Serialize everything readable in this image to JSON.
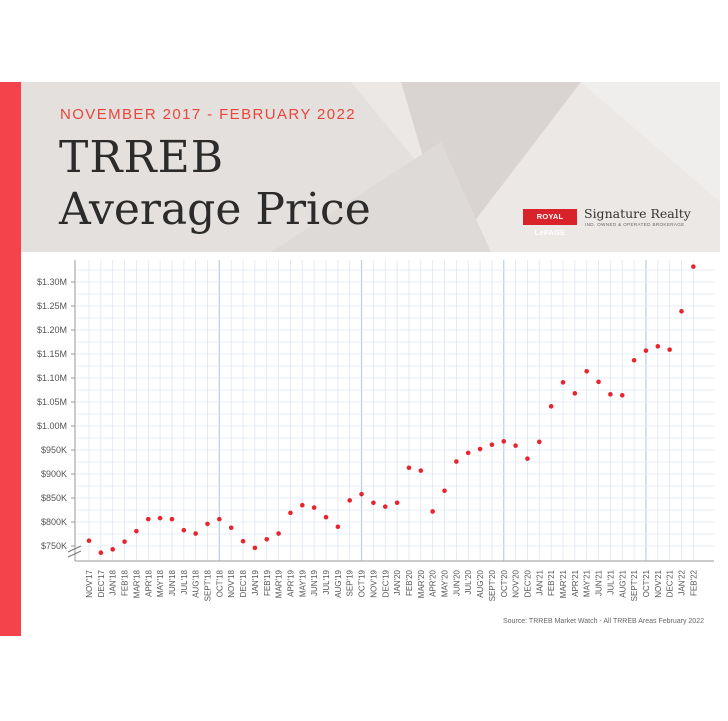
{
  "header": {
    "date_range": "NOVEMBER 2017 - FEBRUARY 2022",
    "title_line1": "TRREB",
    "title_line2": "Average Price",
    "logo_box": "ROYAL LePAGE",
    "logo_name": "Signature Realty",
    "logo_tag": "IND. OWNED & OPERATED BROKERAGE"
  },
  "colors": {
    "accent": "#f5434b",
    "point": "#e8242f",
    "grid": "#dfe6f2",
    "major_grid": "#b9cde6",
    "header_bg": "#e4e0de"
  },
  "source": "Source: TRREB Market Watch - All TRREB Areas February 2022",
  "chart_data": {
    "type": "scatter",
    "title": "TRREB Average Price",
    "subtitle": "NOVEMBER 2017 - FEBRUARY 2022",
    "xlabel": "",
    "ylabel": "",
    "ylim": [
      740000,
      1340000
    ],
    "axis_break": true,
    "grid": true,
    "y_ticks": [
      "$750K",
      "$800K",
      "$850K",
      "$900K",
      "$950K",
      "$1.00M",
      "$1.05M",
      "$1.10M",
      "$1.15M",
      "$1.20M",
      "$1.25M",
      "$1.30M"
    ],
    "y_tick_values": [
      750000,
      800000,
      850000,
      900000,
      950000,
      1000000,
      1050000,
      1100000,
      1150000,
      1200000,
      1250000,
      1300000
    ],
    "categories": [
      "NOV'17",
      "DEC'17",
      "JAN'18",
      "FEB'18",
      "MAR'18",
      "APR'18",
      "MAY'18",
      "JUN'18",
      "JUL'18",
      "AUG'18",
      "SEPT'18",
      "OCT'18",
      "NOV'18",
      "DEC'18",
      "JAN'19",
      "FEB'19",
      "MAR'19",
      "APR'19",
      "MAY'19",
      "JUN'19",
      "JUL'19",
      "AUG'19",
      "SEP'19",
      "OCT'19",
      "NOV'19",
      "DEC'19",
      "JAN'20",
      "FEB'20",
      "MAR'20",
      "APR'20",
      "MAY'20",
      "JUN'20",
      "JUL'20",
      "AUG'20",
      "SEPT'20",
      "OCT'20",
      "NOV'20",
      "DEC'20",
      "JAN'21",
      "FEB'21",
      "MAR'21",
      "APR'21",
      "MAY'21",
      "JUN'21",
      "JUL'21",
      "AUG'21",
      "SEPT'21",
      "OCT'21",
      "NOV'21",
      "DEC'21",
      "JAN'22",
      "FEB'22"
    ],
    "values": [
      761000,
      736000,
      743000,
      759000,
      781000,
      806000,
      808000,
      806000,
      783000,
      776000,
      796000,
      806000,
      788000,
      760000,
      746000,
      764000,
      776000,
      819000,
      835000,
      830000,
      810000,
      790000,
      845000,
      858000,
      840000,
      832000,
      840000,
      913000,
      907000,
      822000,
      865000,
      926000,
      944000,
      952000,
      961000,
      968000,
      959000,
      932000,
      967000,
      1041000,
      1091000,
      1068000,
      1114000,
      1092000,
      1066000,
      1064000,
      1137000,
      1157000,
      1166000,
      1159000,
      1239000,
      1332000
    ]
  }
}
